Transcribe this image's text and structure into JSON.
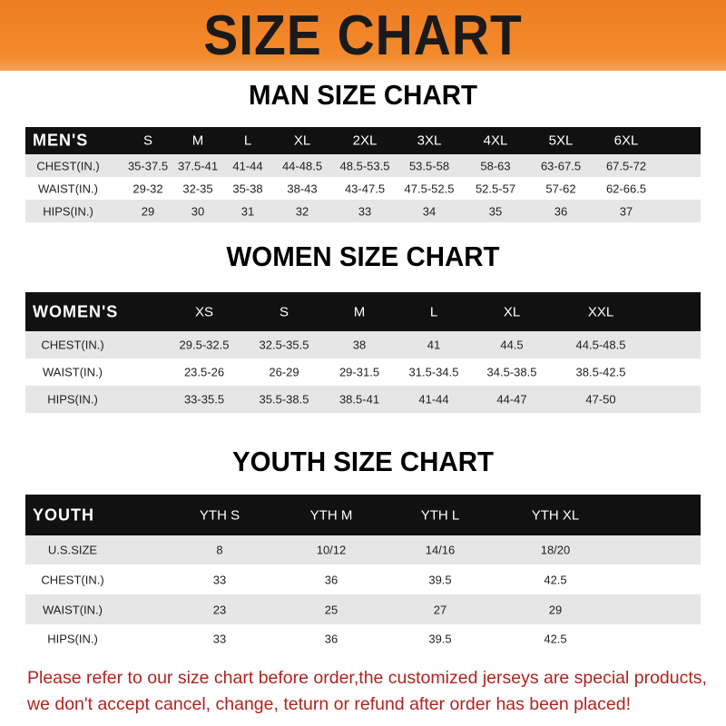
{
  "title": "SIZE CHART",
  "colors": {
    "banner": "#f07f25",
    "header_row": "#111111",
    "footer_text": "#b0241f"
  },
  "tables": [
    {
      "title": "MAN SIZE CHART",
      "header": [
        "MEN'S",
        "S",
        "M",
        "L",
        "XL",
        "2XL",
        "3XL",
        "4XL",
        "5XL",
        "6XL"
      ],
      "rows": [
        [
          "CHEST(IN.)",
          "35-37.5",
          "37.5-41",
          "41-44",
          "44-48.5",
          "48.5-53.5",
          "53.5-58",
          "58-63",
          "63-67.5",
          "67.5-72"
        ],
        [
          "WAIST(IN.)",
          "29-32",
          "32-35",
          "35-38",
          "38-43",
          "43-47.5",
          "47.5-52.5",
          "52.5-57",
          "57-62",
          "62-66.5"
        ],
        [
          "HIPS(IN.)",
          "29",
          "30",
          "31",
          "32",
          "33",
          "34",
          "35",
          "36",
          "37"
        ]
      ]
    },
    {
      "title": "WOMEN SIZE CHART",
      "header": [
        "WOMEN'S",
        "XS",
        "S",
        "M",
        "L",
        "XL",
        "XXL"
      ],
      "rows": [
        [
          "CHEST(IN.)",
          "29.5-32.5",
          "32.5-35.5",
          "38",
          "41",
          "44.5",
          "44.5-48.5"
        ],
        [
          "WAIST(IN.)",
          "23.5-26",
          "26-29",
          "29-31.5",
          "31.5-34.5",
          "34.5-38.5",
          "38.5-42.5"
        ],
        [
          "HIPS(IN.)",
          "33-35.5",
          "35.5-38.5",
          "38.5-41",
          "41-44",
          "44-47",
          "47-50"
        ]
      ]
    },
    {
      "title": "YOUTH SIZE CHART",
      "header": [
        "YOUTH",
        "YTH S",
        "YTH M",
        "YTH L",
        "YTH XL"
      ],
      "rows": [
        [
          "U.S.SIZE",
          "8",
          "10/12",
          "14/16",
          "18/20"
        ],
        [
          "CHEST(IN.)",
          "33",
          "36",
          "39.5",
          "42.5"
        ],
        [
          "WAIST(IN.)",
          "23",
          "25",
          "27",
          "29"
        ],
        [
          "HIPS(IN.)",
          "33",
          "36",
          "39.5",
          "42.5"
        ]
      ]
    }
  ],
  "footer": {
    "line1": "Please refer to our size chart before order,the customized jerseys are special products,",
    "line2": "we don't accept cancel, change, teturn or refund after order has been placed!"
  }
}
